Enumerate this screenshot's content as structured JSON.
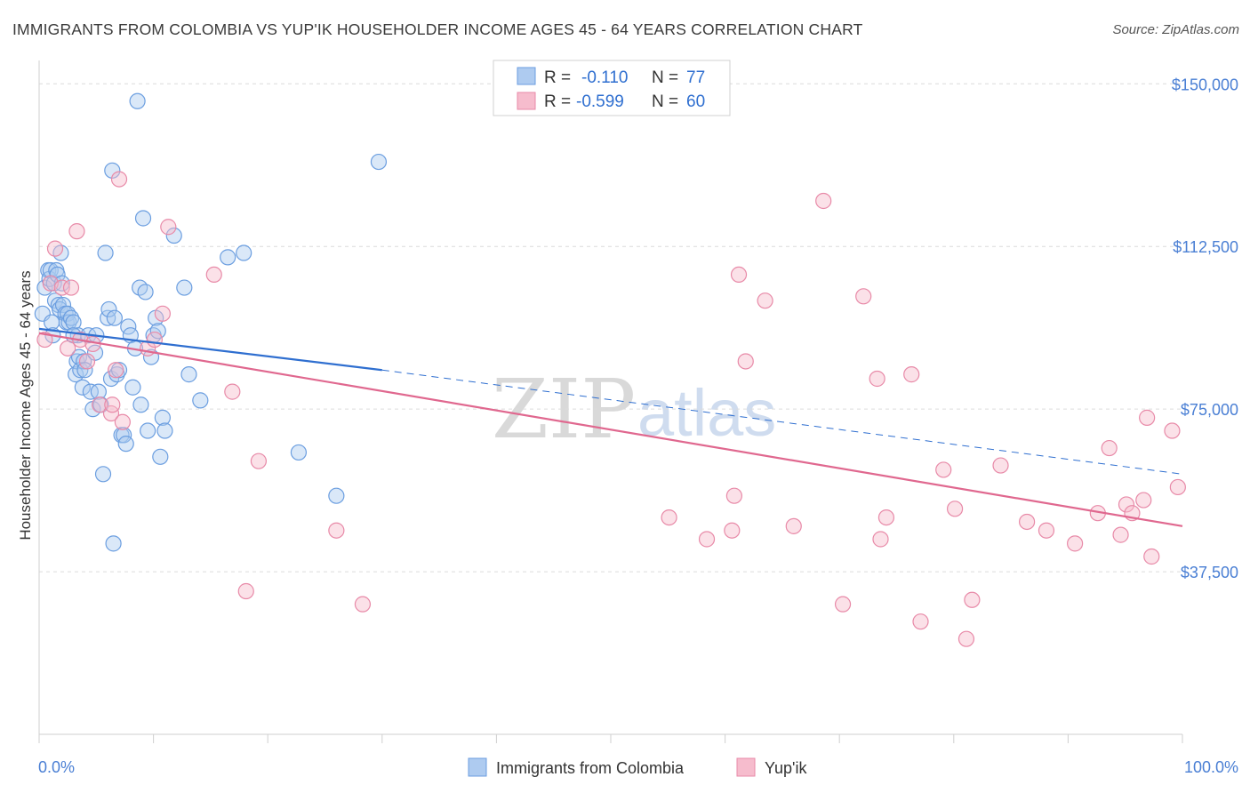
{
  "title": "IMMIGRANTS FROM COLOMBIA VS YUP'IK HOUSEHOLDER INCOME AGES 45 - 64 YEARS CORRELATION CHART",
  "source": "Source: ZipAtlas.com",
  "watermark": {
    "zip": "ZIP",
    "atlas": "atlas"
  },
  "colors": {
    "blue_fill": "#aecbf0",
    "blue_stroke": "#6b9ee0",
    "blue_line": "#2f6fd0",
    "pink_fill": "#f6bccd",
    "pink_stroke": "#e88aa8",
    "pink_line": "#e0688f",
    "tick_text": "#4a7fd4",
    "grid": "#dcdcdc"
  },
  "legend": {
    "rows": [
      {
        "r_label": "R =",
        "r_value": "-0.110",
        "n_label": "N =",
        "n_value": "77"
      },
      {
        "r_label": "R =",
        "r_value": "-0.599",
        "n_label": "N =",
        "n_value": "60"
      }
    ]
  },
  "bottom_legend": [
    "Immigrants from Colombia",
    "Yup'ik"
  ],
  "chart_data": {
    "type": "scatter",
    "title": "IMMIGRANTS FROM COLOMBIA VS YUP'IK HOUSEHOLDER INCOME AGES 45 - 64 YEARS CORRELATION CHART",
    "xlabel": "",
    "ylabel": "Householder Income Ages 45 - 64 years",
    "xlim": [
      0,
      100
    ],
    "ylim": [
      0,
      156000
    ],
    "x_tick_labels": [
      "0.0%",
      "100.0%"
    ],
    "y_ticks": [
      37500,
      75000,
      112500,
      150000
    ],
    "y_tick_labels": [
      "$37,500",
      "$75,000",
      "$112,500",
      "$150,000"
    ],
    "grid": "horizontal dashed",
    "legend_position": "top-center",
    "series": [
      {
        "name": "Immigrants from Colombia",
        "r": -0.11,
        "n": 77,
        "trend": {
          "x0": 0,
          "y0": 93500,
          "x1": 30,
          "y1": 84000,
          "dashed_to_x": 100,
          "dashed_to_y": 60000
        },
        "points": [
          [
            0.3,
            97000
          ],
          [
            0.5,
            103000
          ],
          [
            0.8,
            107000
          ],
          [
            0.9,
            105000
          ],
          [
            1.0,
            107000
          ],
          [
            1.1,
            95000
          ],
          [
            1.2,
            92000
          ],
          [
            1.3,
            104000
          ],
          [
            1.4,
            100000
          ],
          [
            1.5,
            107000
          ],
          [
            1.6,
            106000
          ],
          [
            1.7,
            99000
          ],
          [
            1.8,
            98000
          ],
          [
            1.9,
            111000
          ],
          [
            2.0,
            104000
          ],
          [
            2.1,
            99000
          ],
          [
            2.3,
            97000
          ],
          [
            2.4,
            95000
          ],
          [
            2.5,
            97000
          ],
          [
            2.6,
            95000
          ],
          [
            2.8,
            96000
          ],
          [
            3.0,
            95000
          ],
          [
            3.2,
            83000
          ],
          [
            3.3,
            86000
          ],
          [
            3.4,
            92000
          ],
          [
            3.5,
            87000
          ],
          [
            3.6,
            84000
          ],
          [
            3.8,
            80000
          ],
          [
            3.9,
            86000
          ],
          [
            4.0,
            84000
          ],
          [
            4.3,
            92000
          ],
          [
            4.5,
            79000
          ],
          [
            4.7,
            75000
          ],
          [
            4.9,
            88000
          ],
          [
            5.0,
            92000
          ],
          [
            5.2,
            79000
          ],
          [
            5.4,
            76000
          ],
          [
            5.6,
            60000
          ],
          [
            5.8,
            111000
          ],
          [
            6.0,
            96000
          ],
          [
            6.1,
            98000
          ],
          [
            6.3,
            82000
          ],
          [
            6.4,
            130000
          ],
          [
            6.5,
            44000
          ],
          [
            6.6,
            96000
          ],
          [
            6.8,
            83000
          ],
          [
            7.0,
            84000
          ],
          [
            7.2,
            69000
          ],
          [
            7.4,
            69000
          ],
          [
            7.6,
            67000
          ],
          [
            7.8,
            94000
          ],
          [
            8.0,
            92000
          ],
          [
            8.2,
            80000
          ],
          [
            8.4,
            89000
          ],
          [
            8.6,
            146000
          ],
          [
            8.8,
            103000
          ],
          [
            8.9,
            76000
          ],
          [
            9.1,
            119000
          ],
          [
            9.3,
            102000
          ],
          [
            9.5,
            70000
          ],
          [
            9.8,
            87000
          ],
          [
            10.0,
            92000
          ],
          [
            10.2,
            96000
          ],
          [
            10.4,
            93000
          ],
          [
            10.6,
            64000
          ],
          [
            10.8,
            73000
          ],
          [
            11.0,
            70000
          ],
          [
            11.8,
            115000
          ],
          [
            12.7,
            103000
          ],
          [
            13.1,
            83000
          ],
          [
            14.1,
            77000
          ],
          [
            16.5,
            110000
          ],
          [
            17.9,
            111000
          ],
          [
            22.7,
            65000
          ],
          [
            26.0,
            55000
          ],
          [
            29.7,
            132000
          ],
          [
            3.0,
            92000
          ]
        ]
      },
      {
        "name": "Yup'ik",
        "r": -0.599,
        "n": 60,
        "trend": {
          "x0": 0,
          "y0": 92500,
          "x1": 100,
          "y1": 48000
        },
        "points": [
          [
            0.5,
            91000
          ],
          [
            1.0,
            104000
          ],
          [
            1.4,
            112000
          ],
          [
            2.0,
            103000
          ],
          [
            2.5,
            89000
          ],
          [
            2.8,
            103000
          ],
          [
            3.3,
            116000
          ],
          [
            3.6,
            91000
          ],
          [
            4.2,
            86000
          ],
          [
            4.7,
            90000
          ],
          [
            5.3,
            76000
          ],
          [
            6.3,
            74000
          ],
          [
            6.4,
            76000
          ],
          [
            6.7,
            84000
          ],
          [
            7.0,
            128000
          ],
          [
            7.3,
            72000
          ],
          [
            9.5,
            89000
          ],
          [
            10.1,
            91000
          ],
          [
            10.8,
            97000
          ],
          [
            11.3,
            117000
          ],
          [
            15.3,
            106000
          ],
          [
            16.9,
            79000
          ],
          [
            18.1,
            33000
          ],
          [
            19.2,
            63000
          ],
          [
            26.0,
            47000
          ],
          [
            28.3,
            30000
          ],
          [
            55.1,
            50000
          ],
          [
            58.4,
            45000
          ],
          [
            60.6,
            47000
          ],
          [
            60.8,
            55000
          ],
          [
            61.2,
            106000
          ],
          [
            61.8,
            86000
          ],
          [
            63.5,
            100000
          ],
          [
            66.0,
            48000
          ],
          [
            68.6,
            123000
          ],
          [
            70.3,
            30000
          ],
          [
            72.1,
            101000
          ],
          [
            73.3,
            82000
          ],
          [
            73.6,
            45000
          ],
          [
            74.1,
            50000
          ],
          [
            76.3,
            83000
          ],
          [
            77.1,
            26000
          ],
          [
            79.1,
            61000
          ],
          [
            80.1,
            52000
          ],
          [
            81.1,
            22000
          ],
          [
            81.6,
            31000
          ],
          [
            84.1,
            62000
          ],
          [
            86.4,
            49000
          ],
          [
            88.1,
            47000
          ],
          [
            90.6,
            44000
          ],
          [
            92.6,
            51000
          ],
          [
            93.6,
            66000
          ],
          [
            94.6,
            46000
          ],
          [
            95.1,
            53000
          ],
          [
            95.6,
            51000
          ],
          [
            96.6,
            54000
          ],
          [
            96.9,
            73000
          ],
          [
            97.3,
            41000
          ],
          [
            99.1,
            70000
          ],
          [
            99.6,
            57000
          ]
        ]
      }
    ]
  }
}
